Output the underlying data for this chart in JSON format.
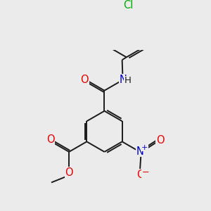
{
  "background_color": "#ebebeb",
  "bond_color": "#1a1a1a",
  "bond_lw": 1.4,
  "atom_colors": {
    "O": "#e60000",
    "N": "#0000cc",
    "Cl": "#00aa00",
    "C": "#1a1a1a"
  },
  "fs": 9.5
}
